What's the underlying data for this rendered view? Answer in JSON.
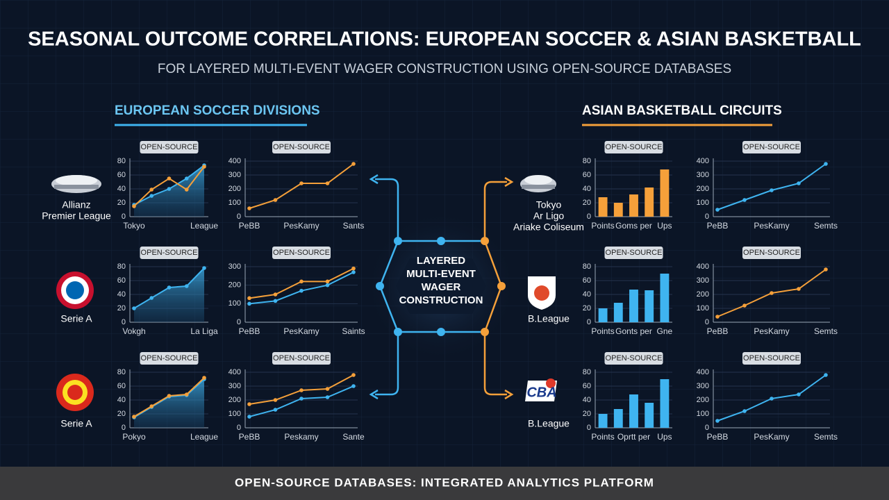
{
  "header": {
    "title": "SEASONAL OUTCOME CORRELATIONS: EUROPEAN SOCCER & ASIAN BASKETBALL",
    "subtitle": "FOR LAYERED MULTI-EVENT WAGER CONSTRUCTION USING OPEN-SOURCE DATABASES"
  },
  "sections": [
    {
      "title": "EUROPEAN SOCCER DIVISIONS",
      "teams": [
        {
          "lines": [
            "Allianz",
            "Premier League"
          ]
        },
        {
          "lines": [
            "Serie A"
          ]
        },
        {
          "lines": [
            "Serie A"
          ]
        }
      ]
    },
    {
      "title": "ASIAN BASKETBALL CIRCUITS",
      "teams": [
        {
          "lines": [
            "Tokyo",
            "Ar Ligo",
            "Ariake Coliseum"
          ]
        },
        {
          "lines": [
            "B.League"
          ]
        },
        {
          "logo": "CBA",
          "lines": [
            "B.League"
          ]
        }
      ]
    }
  ],
  "hub": {
    "lines": [
      "LAYERED",
      "MULTI-EVENT",
      "WAGER",
      "CONSTRUCTION"
    ]
  },
  "footer": "OPEN-SOURCE DATABASES: INTEGRATED ANALYTICS PLATFORM",
  "chart_data": [
    {
      "type": "line",
      "label": "OPEN-SOURCE",
      "categories": [
        "Tokyo",
        null,
        null,
        null,
        "League"
      ],
      "ylim": [
        0,
        80
      ],
      "yticks": [
        0,
        20,
        40,
        60,
        80
      ],
      "grid": true,
      "series": [
        {
          "color": "#3fb4f0",
          "area": true,
          "values": [
            17,
            30,
            40,
            55,
            74
          ]
        },
        {
          "color": "#f5a03a",
          "area": false,
          "values": [
            15,
            39,
            55,
            39,
            72
          ]
        }
      ]
    },
    {
      "type": "line",
      "label": "OPEN-SOURCE",
      "categories": [
        "PeBB",
        null,
        "PesKamy",
        null,
        "Sants"
      ],
      "ylim": [
        0,
        400
      ],
      "yticks": [
        0,
        100,
        200,
        300,
        400
      ],
      "grid": true,
      "series": [
        {
          "color": "#f5a03a",
          "area": false,
          "values": [
            60,
            120,
            240,
            240,
            380
          ]
        }
      ]
    },
    {
      "type": "bar",
      "label": "OPEN-SOURCE",
      "categories": [
        "Points",
        null,
        "Goms per",
        null,
        "Ups"
      ],
      "ylim": [
        0,
        80
      ],
      "yticks": [
        0,
        20,
        40,
        60,
        80
      ],
      "grid": true,
      "color": "#f5a03a",
      "values": [
        28,
        20,
        32,
        42,
        68
      ]
    },
    {
      "type": "line",
      "label": "OPEN-SOURCE",
      "categories": [
        "PeBB",
        null,
        "PesKamy",
        null,
        "Semts"
      ],
      "ylim": [
        0,
        400
      ],
      "yticks": [
        0,
        100,
        200,
        300,
        400
      ],
      "grid": true,
      "series": [
        {
          "color": "#3fb4f0",
          "area": false,
          "values": [
            50,
            120,
            190,
            240,
            380
          ]
        }
      ]
    },
    {
      "type": "line",
      "label": "OPEN-SOURCE",
      "categories": [
        "Vokgh",
        null,
        null,
        null,
        "La Liga"
      ],
      "ylim": [
        0,
        80
      ],
      "yticks": [
        0,
        20,
        40,
        60,
        80
      ],
      "grid": true,
      "series": [
        {
          "color": "#3fb4f0",
          "area": true,
          "values": [
            20,
            35,
            50,
            52,
            78
          ]
        }
      ]
    },
    {
      "type": "line",
      "label": "OPEN-SOURCE",
      "categories": [
        "PeBB",
        null,
        "PesKamy",
        null,
        "Saints"
      ],
      "ylim": [
        0,
        300
      ],
      "yticks": [
        0,
        100,
        200,
        300
      ],
      "grid": true,
      "series": [
        {
          "color": "#f5a03a",
          "area": false,
          "values": [
            130,
            150,
            220,
            220,
            290
          ]
        },
        {
          "color": "#3fb4f0",
          "area": false,
          "values": [
            100,
            115,
            170,
            200,
            270
          ]
        }
      ]
    },
    {
      "type": "bar",
      "label": "OPEN-SOURCE",
      "categories": [
        "Points",
        null,
        "Gonts per",
        null,
        "Gne"
      ],
      "ylim": [
        0,
        80
      ],
      "yticks": [
        0,
        20,
        40,
        60,
        80
      ],
      "grid": true,
      "color": "#3fb4f0",
      "values": [
        20,
        28,
        47,
        46,
        70
      ]
    },
    {
      "type": "line",
      "label": "OPEN-SOURCE",
      "categories": [
        "PeBB",
        null,
        "PesKamy",
        null,
        "Semts"
      ],
      "ylim": [
        0,
        400
      ],
      "yticks": [
        0,
        100,
        200,
        300,
        400
      ],
      "grid": true,
      "series": [
        {
          "color": "#f5a03a",
          "area": false,
          "values": [
            40,
            120,
            210,
            240,
            380
          ]
        }
      ]
    },
    {
      "type": "line",
      "label": "OPEN-SOURCE",
      "categories": [
        "Pokyo",
        null,
        null,
        null,
        "League"
      ],
      "ylim": [
        0,
        80
      ],
      "yticks": [
        0,
        20,
        40,
        60,
        80
      ],
      "grid": true,
      "series": [
        {
          "color": "#3fb4f0",
          "area": true,
          "values": [
            15,
            30,
            45,
            47,
            70
          ]
        },
        {
          "color": "#f5a03a",
          "area": false,
          "values": [
            16,
            31,
            46,
            48,
            72
          ]
        }
      ]
    },
    {
      "type": "line",
      "label": "OPEN-SOURCE",
      "categories": [
        "PeBB",
        null,
        "Peskamy",
        null,
        "Sante"
      ],
      "ylim": [
        0,
        400
      ],
      "yticks": [
        0,
        100,
        200,
        300,
        400
      ],
      "grid": true,
      "series": [
        {
          "color": "#f5a03a",
          "area": false,
          "values": [
            170,
            200,
            270,
            280,
            380
          ]
        },
        {
          "color": "#3fb4f0",
          "area": false,
          "values": [
            80,
            130,
            210,
            220,
            300
          ]
        }
      ]
    },
    {
      "type": "bar",
      "label": "OPEN-SOURCE",
      "categories": [
        "Points",
        null,
        "Oprtt per",
        null,
        "Ups"
      ],
      "ylim": [
        0,
        80
      ],
      "yticks": [
        0,
        20,
        40,
        60,
        80
      ],
      "grid": true,
      "color": "#3fb4f0",
      "values": [
        20,
        27,
        48,
        36,
        70
      ]
    },
    {
      "type": "line",
      "label": "OPEN-SOURCE",
      "categories": [
        "PeBB",
        null,
        "PesKamy",
        null,
        "Semts"
      ],
      "ylim": [
        0,
        400
      ],
      "yticks": [
        0,
        100,
        200,
        300,
        400
      ],
      "grid": true,
      "series": [
        {
          "color": "#3fb4f0",
          "area": false,
          "values": [
            50,
            120,
            210,
            240,
            380
          ]
        }
      ]
    }
  ]
}
